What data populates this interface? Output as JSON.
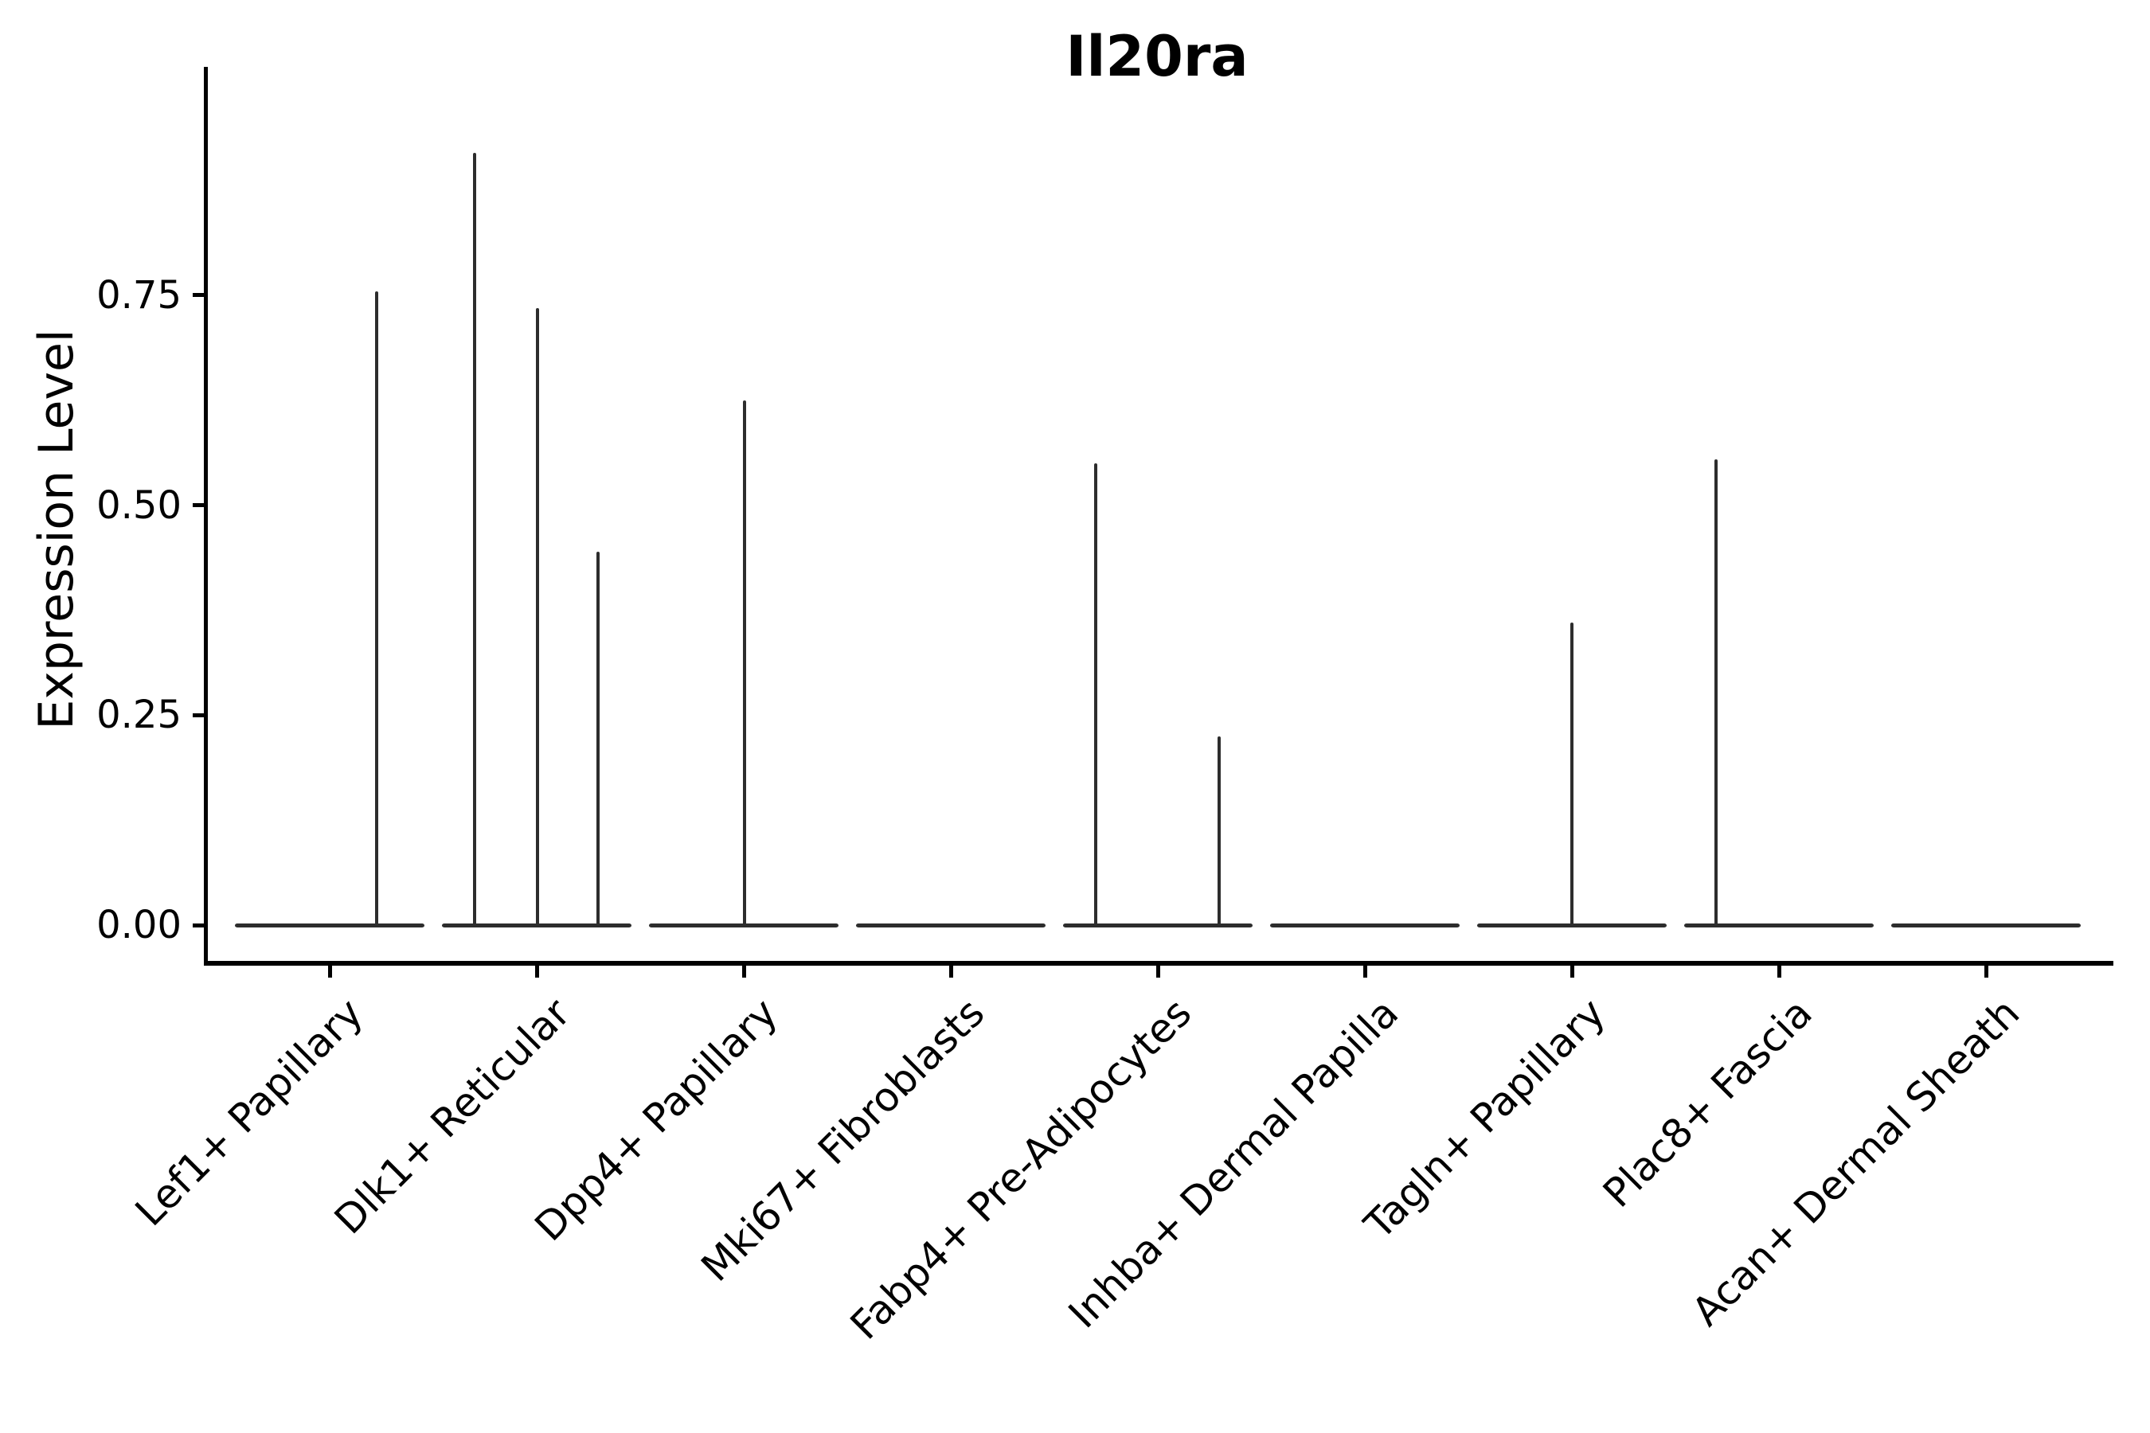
{
  "figure": {
    "title": "Il20ra",
    "y_axis": {
      "label": "Expression Level",
      "ticks": [
        {
          "label": "0.00",
          "value": 0.0
        },
        {
          "label": "0.25",
          "value": 0.25
        },
        {
          "label": "0.50",
          "value": 0.5
        },
        {
          "label": "0.75",
          "value": 0.75
        }
      ]
    },
    "colors": {
      "violin": "#2d2d2d",
      "axis": "#000000",
      "text": "#000000",
      "background": "#ffffff"
    }
  },
  "chart_data": {
    "type": "violin",
    "title": "Il20ra",
    "xlabel": "",
    "ylabel": "Expression Level",
    "ylim": [
      0,
      1.02
    ],
    "y_ticks": [
      0,
      0.25,
      0.5,
      0.75
    ],
    "grid": false,
    "legend": "none",
    "description": "Seurat-style stacked violin of Il20ra expression; most cells at 0 (flat wide base per cluster) with rare expressing cells shown as thin density spikes.",
    "categories": [
      "Lef1+ Papillary",
      "Dlk1+ Reticular",
      "Dpp4+ Papillary",
      "Mki67+ Fibroblasts",
      "Fabp4+ Pre-Adipocytes",
      "Inhba+ Dermal Papilla",
      "Tagln+ Papillary",
      "Plac8+ Fascia",
      "Acan+ Dermal Sheath"
    ],
    "series": [
      {
        "name": "Lef1+ Papillary",
        "baseline_value": 0,
        "spikes": [
          {
            "x_offset": 59,
            "value": 0.755
          }
        ]
      },
      {
        "name": "Dlk1+ Reticular",
        "baseline_value": 0,
        "spikes": [
          {
            "x_offset": -78,
            "value": 0.92
          },
          {
            "x_offset": 1,
            "value": 0.735
          },
          {
            "x_offset": 77,
            "value": 0.445
          }
        ]
      },
      {
        "name": "Dpp4+ Papillary",
        "baseline_value": 0,
        "spikes": [
          {
            "x_offset": 1,
            "value": 0.625
          }
        ]
      },
      {
        "name": "Mki67+ Fibroblasts",
        "baseline_value": 0,
        "spikes": []
      },
      {
        "name": "Fabp4+ Pre-Adipocytes",
        "baseline_value": 0,
        "spikes": [
          {
            "x_offset": -78,
            "value": 0.55
          },
          {
            "x_offset": 77,
            "value": 0.225
          }
        ]
      },
      {
        "name": "Inhba+ Dermal Papilla",
        "baseline_value": 0,
        "spikes": []
      },
      {
        "name": "Tagln+ Papillary",
        "baseline_value": 0,
        "spikes": [
          {
            "x_offset": 0,
            "value": 0.36
          }
        ]
      },
      {
        "name": "Plac8+ Fascia",
        "baseline_value": 0,
        "spikes": [
          {
            "x_offset": -79,
            "value": 0.555
          }
        ]
      },
      {
        "name": "Acan+ Dermal Sheath",
        "baseline_value": 0,
        "spikes": []
      }
    ]
  }
}
